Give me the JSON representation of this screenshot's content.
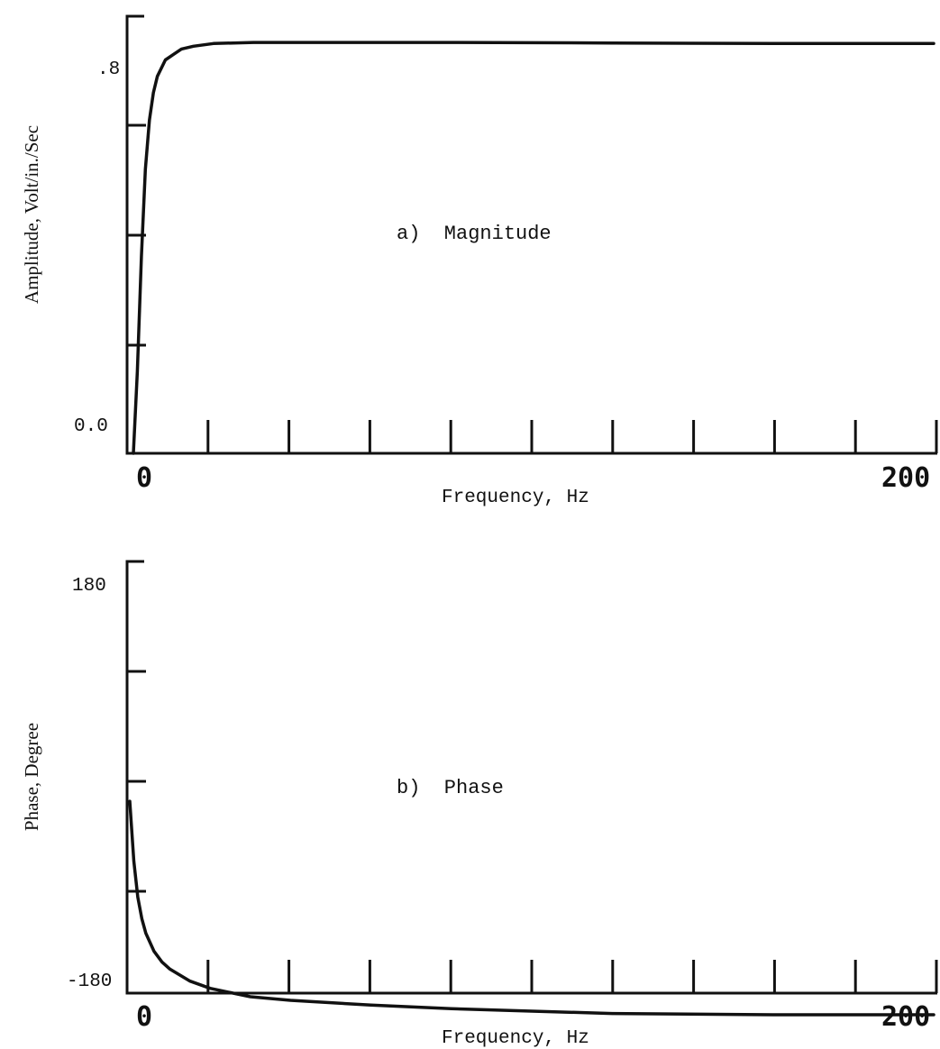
{
  "chart_data": [
    {
      "type": "line",
      "annotation": "a)  Magnitude",
      "xlabel": "Frequency, Hz",
      "ylabel": "Amplitude, Volt/in./Sec",
      "xlim": [
        0,
        200
      ],
      "ylim": [
        0.0,
        0.8
      ],
      "x_tick_labels": [
        "0",
        "200"
      ],
      "y_tick_labels": [
        ".8",
        "0.0"
      ],
      "x_major_ticks": 10,
      "y_minor_ticks": 4,
      "grid": false,
      "series": [
        {
          "x": [
            0,
            1,
            2,
            3,
            4,
            5,
            6,
            8,
            10,
            12,
            15,
            20,
            30,
            50,
            80,
            120,
            160,
            200
          ],
          "values": [
            0.0,
            0.15,
            0.36,
            0.52,
            0.61,
            0.66,
            0.69,
            0.72,
            0.73,
            0.74,
            0.745,
            0.75,
            0.752,
            0.752,
            0.752,
            0.751,
            0.75,
            0.75
          ]
        }
      ]
    },
    {
      "type": "line",
      "annotation": "b)  Phase",
      "xlabel": "Frequency, Hz",
      "ylabel": "Phase, Degree",
      "xlim": [
        0,
        200
      ],
      "ylim": [
        -180,
        180
      ],
      "x_tick_labels": [
        "0",
        "200"
      ],
      "y_tick_labels": [
        "180",
        "-180"
      ],
      "x_major_ticks": 10,
      "y_minor_ticks": 4,
      "grid": false,
      "series": [
        {
          "x": [
            0,
            1,
            2,
            3,
            4,
            6,
            8,
            10,
            15,
            20,
            30,
            40,
            60,
            80,
            100,
            120,
            160,
            200
          ],
          "values": [
            -20,
            -70,
            -100,
            -118,
            -130,
            -145,
            -154,
            -160,
            -170,
            -176,
            -183,
            -186,
            -190,
            -193,
            -195,
            -197,
            -198,
            -198
          ]
        }
      ]
    }
  ]
}
